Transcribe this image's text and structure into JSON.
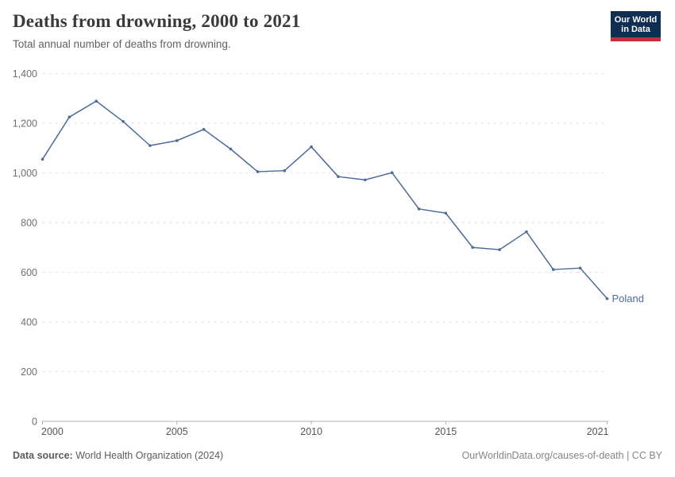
{
  "header": {
    "title": "Deaths from drowning, 2000 to 2021",
    "subtitle": "Total annual number of deaths from drowning.",
    "logo": {
      "line1": "Our World",
      "line2": "in Data"
    }
  },
  "chart_data": {
    "type": "line",
    "title": "Deaths from drowning, 2000 to 2021",
    "xlabel": "",
    "ylabel": "",
    "xlim": [
      2000,
      2021
    ],
    "ylim": [
      0,
      1400
    ],
    "grid": "horizontal-dashed",
    "legend_position": "end-of-line-label",
    "yticks": [
      0,
      200,
      400,
      600,
      800,
      1000,
      1200,
      1400
    ],
    "ytick_labels": [
      "0",
      "200",
      "400",
      "600",
      "800",
      "1,000",
      "1,200",
      "1,400"
    ],
    "xticks": [
      2000,
      2005,
      2010,
      2015,
      2021
    ],
    "xtick_labels": [
      "2000",
      "2005",
      "2010",
      "2015",
      "2021"
    ],
    "series": [
      {
        "name": "Poland",
        "color": "#4c6a9c",
        "x": [
          2000,
          2001,
          2002,
          2003,
          2004,
          2005,
          2006,
          2007,
          2008,
          2009,
          2010,
          2011,
          2012,
          2013,
          2014,
          2015,
          2016,
          2017,
          2018,
          2019,
          2020,
          2021
        ],
        "values": [
          1055,
          1225,
          1289,
          1207,
          1110,
          1130,
          1175,
          1096,
          1005,
          1009,
          1105,
          985,
          972,
          1001,
          855,
          838,
          700,
          691,
          763,
          611,
          617,
          494
        ]
      }
    ]
  },
  "footer": {
    "source_label": "Data source:",
    "source_text": " World Health Organization (2024)",
    "credit": "OurWorldinData.org/causes-of-death | CC BY"
  },
  "colors": {
    "line": "#4c6a9c",
    "logo_bg": "#102d52",
    "logo_bar": "#c0313d",
    "grid": "#dddddd",
    "axis": "#b3b3b3",
    "title_text": "#3a3a3a",
    "subtitle_text": "#616161"
  }
}
